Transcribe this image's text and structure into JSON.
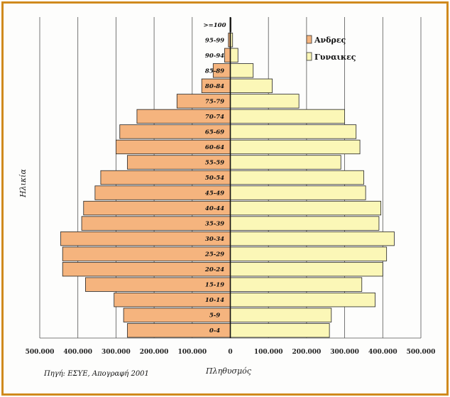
{
  "chart_data": {
    "type": "bar",
    "orientation": "horizontal",
    "title": "",
    "xlabel": "Πληθυσμός",
    "ylabel": "Ηλικία",
    "xlim": [
      -500000,
      500000
    ],
    "x_ticks": [
      -500000,
      -400000,
      -300000,
      -200000,
      -100000,
      0,
      100000,
      200000,
      300000,
      400000,
      500000
    ],
    "x_tick_labels": [
      "500.000",
      "400.000",
      "300.000",
      "200.000",
      "100.000",
      "0",
      "100.000",
      "200.000",
      "300.000",
      "400.000",
      "500.000"
    ],
    "grid": "vertical",
    "legend_position": "top-right",
    "categories": [
      "0-4",
      "5-9",
      "10-14",
      "15-19",
      "20-24",
      "25-29",
      "30-34",
      "35-39",
      "40-44",
      "45-49",
      "50-54",
      "55-59",
      "60-64",
      "65-69",
      "70-74",
      "75-79",
      "80-84",
      "85-89",
      "90-94",
      "95-99",
      ">=100"
    ],
    "series": [
      {
        "name": "Ανδρες",
        "color": "#f5b47e",
        "values": [
          270000,
          280000,
          305000,
          380000,
          440000,
          440000,
          445000,
          390000,
          385000,
          355000,
          340000,
          270000,
          300000,
          290000,
          245000,
          140000,
          75000,
          45000,
          15000,
          5000,
          1000
        ]
      },
      {
        "name": "Γυναικες",
        "color": "#fbf7b7",
        "values": [
          260000,
          265000,
          380000,
          345000,
          400000,
          410000,
          430000,
          390000,
          395000,
          355000,
          350000,
          290000,
          340000,
          330000,
          300000,
          180000,
          110000,
          60000,
          20000,
          6000,
          2000
        ]
      }
    ]
  },
  "source_note": "Πηγή: ΕΣΥΕ, Απογραφή 2001"
}
